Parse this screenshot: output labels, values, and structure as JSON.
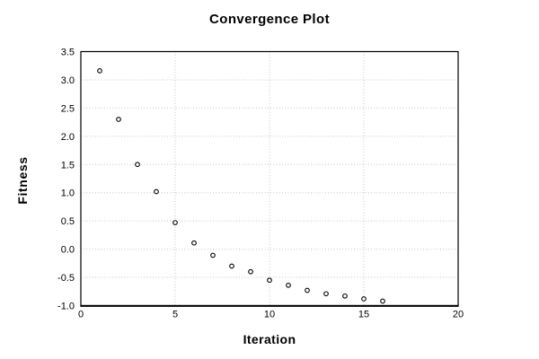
{
  "figure": {
    "background_color": "#ffffff",
    "axis_color": "#000000",
    "text_color": "#000000"
  },
  "chart_data": {
    "type": "scatter",
    "title": "Convergence Plot",
    "xlabel": "Iteration",
    "ylabel": "Fitness",
    "xlim": [
      0,
      20
    ],
    "ylim": [
      -1.0,
      3.5
    ],
    "xticks": [
      0,
      5,
      10,
      15,
      20
    ],
    "xticklabels": [
      "0",
      "5",
      "10",
      "15",
      "20"
    ],
    "yticks": [
      3.5,
      3.0,
      2.5,
      2.0,
      1.5,
      1.0,
      0.5,
      0.0,
      -0.5,
      -1.0
    ],
    "yticklabels": [
      "3.5",
      "3.0",
      "2.5",
      "2.0",
      "1.5",
      "1.0",
      "0.5",
      "0.0",
      "-0.5",
      "-1.0"
    ],
    "grid": "dotted",
    "gridline_color": "#c4c4c4",
    "legend_position": "none",
    "marker": {
      "shape": "open-circle",
      "stroke_color": "#000000",
      "fill_color": "#ffffff"
    },
    "x": [
      1,
      2,
      3,
      4,
      5,
      6,
      7,
      8,
      9,
      10,
      11,
      12,
      13,
      14,
      15,
      16
    ],
    "y": [
      3.16,
      2.3,
      1.5,
      1.02,
      0.47,
      0.11,
      -0.11,
      -0.3,
      -0.4,
      -0.55,
      -0.64,
      -0.73,
      -0.79,
      -0.83,
      -0.88,
      -0.92
    ]
  }
}
